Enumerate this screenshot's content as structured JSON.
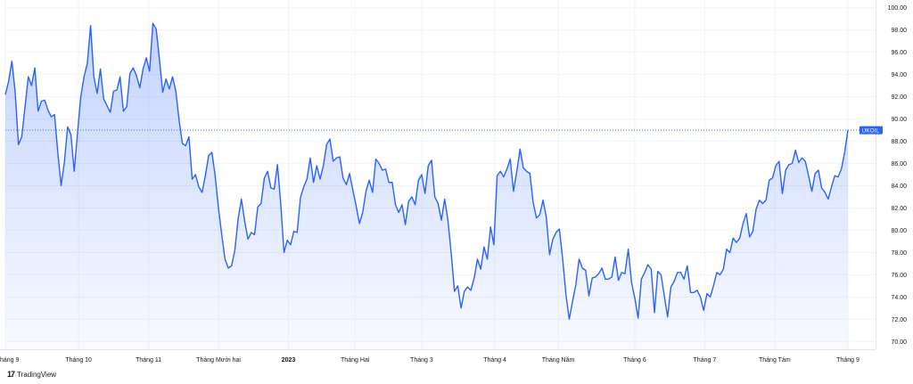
{
  "chart_data": {
    "type": "area",
    "title": "",
    "symbol": "UKOIL",
    "last_value_label": "UKOIL",
    "y_ticks": [
      "70.00",
      "72.00",
      "74.00",
      "76.00",
      "78.00",
      "80.00",
      "82.00",
      "84.00",
      "86.00",
      "88.00",
      "90.00",
      "92.00",
      "94.00",
      "96.00",
      "98.00",
      "100.00"
    ],
    "ylim": [
      69.3,
      100.7
    ],
    "x_ticks": [
      {
        "label": "háng 9",
        "pos": 0,
        "bold": false
      },
      {
        "label": "Tháng 10",
        "pos": 22,
        "bold": false
      },
      {
        "label": "Tháng 11",
        "pos": 43,
        "bold": false
      },
      {
        "label": "Tháng Mười hai",
        "pos": 64,
        "bold": false
      },
      {
        "label": "2023",
        "pos": 85,
        "bold": true
      },
      {
        "label": "Tháng Hai",
        "pos": 105,
        "bold": false
      },
      {
        "label": "Tháng 3",
        "pos": 125,
        "bold": false
      },
      {
        "label": "Tháng 4",
        "pos": 147,
        "bold": false
      },
      {
        "label": "Tháng Năm",
        "pos": 166,
        "bold": false
      },
      {
        "label": "Tháng 6",
        "pos": 189,
        "bold": false
      },
      {
        "label": "Tháng 7",
        "pos": 210,
        "bold": false
      },
      {
        "label": "Tháng Tám",
        "pos": 231,
        "bold": false
      },
      {
        "label": "Tháng 9",
        "pos": 253,
        "bold": false
      }
    ],
    "x_range": [
      0,
      253
    ],
    "series": [
      {
        "values": [
          92.2,
          93.4,
          95.2,
          92.4,
          87.7,
          88.4,
          91.1,
          93.8,
          93.0,
          94.6,
          90.7,
          91.6,
          91.7,
          90.8,
          90.2,
          90.4,
          87.0,
          84.0,
          86.1,
          89.3,
          88.6,
          85.3,
          88.7,
          92.0,
          93.8,
          95.0,
          98.4,
          93.8,
          92.3,
          94.5,
          91.8,
          91.2,
          90.6,
          92.5,
          92.6,
          93.8,
          90.7,
          91.1,
          94.1,
          94.6,
          93.9,
          92.8,
          94.5,
          95.5,
          94.3,
          98.6,
          98.1,
          95.4,
          92.4,
          93.6,
          92.7,
          93.8,
          92.5,
          89.9,
          87.8,
          87.6,
          88.4,
          84.6,
          85.0,
          83.9,
          83.4,
          84.9,
          86.7,
          87.0,
          84.9,
          82.0,
          79.6,
          77.4,
          76.6,
          76.8,
          78.2,
          81.0,
          82.8,
          80.8,
          79.2,
          79.8,
          79.6,
          82.1,
          82.4,
          84.7,
          85.3,
          83.8,
          83.7,
          85.9,
          82.4,
          78.0,
          79.1,
          78.7,
          79.9,
          79.8,
          82.9,
          83.9,
          84.6,
          86.5,
          84.3,
          85.8,
          84.6,
          85.8,
          87.7,
          88.2,
          86.2,
          86.5,
          86.6,
          84.7,
          84.1,
          85.1,
          83.6,
          82.2,
          80.6,
          81.6,
          83.5,
          84.5,
          83.4,
          86.4,
          86.0,
          85.4,
          85.5,
          84.3,
          84.3,
          82.3,
          81.6,
          82.3,
          80.5,
          82.6,
          83.0,
          82.3,
          84.5,
          85.0,
          83.3,
          85.8,
          86.3,
          83.0,
          82.4,
          80.9,
          82.8,
          80.9,
          77.9,
          74.5,
          75.0,
          73.0,
          74.5,
          74.9,
          74.6,
          75.7,
          77.4,
          76.5,
          78.5,
          77.4,
          80.3,
          78.7,
          84.9,
          85.3,
          84.8,
          85.5,
          86.4,
          83.5,
          85.3,
          87.3,
          85.6,
          85.3,
          85.1,
          82.5,
          81.1,
          81.4,
          82.7,
          81.2,
          77.8,
          79.2,
          79.8,
          80.1,
          77.4,
          74.2,
          72.0,
          73.6,
          75.1,
          77.4,
          76.6,
          76.4,
          74.1,
          75.7,
          75.8,
          76.1,
          76.6,
          75.6,
          75.6,
          75.8,
          77.6,
          75.5,
          76.2,
          76.1,
          78.3,
          75.3,
          73.9,
          72.1,
          75.6,
          76.2,
          76.9,
          76.5,
          72.6,
          76.3,
          76.0,
          74.1,
          72.2,
          74.9,
          75.4,
          76.2,
          76.2,
          75.6,
          76.8,
          74.4,
          74.4,
          74.6,
          74.0,
          72.8,
          74.3,
          74.0,
          75.0,
          76.2,
          76.0,
          76.5,
          78.3,
          78.0,
          79.3,
          78.9,
          79.3,
          80.6,
          81.5,
          79.4,
          79.9,
          81.9,
          82.7,
          82.4,
          82.7,
          84.5,
          84.7,
          85.8,
          86.2,
          83.3,
          85.4,
          85.9,
          86.0,
          87.2,
          86.1,
          86.5,
          86.2,
          84.9,
          83.5,
          85.1,
          85.4,
          83.8,
          83.4,
          82.8,
          83.9,
          84.9,
          84.8,
          85.5,
          87.0,
          89.0
        ]
      }
    ],
    "colors": {
      "line": "#2962ff",
      "fill_top": "#2962ff",
      "last_label_bg": "#2962ff",
      "axis_text": "#131722",
      "grid": "#f0f3fa"
    },
    "grid": true
  },
  "branding": {
    "logo": "17",
    "text": "TradingView"
  }
}
